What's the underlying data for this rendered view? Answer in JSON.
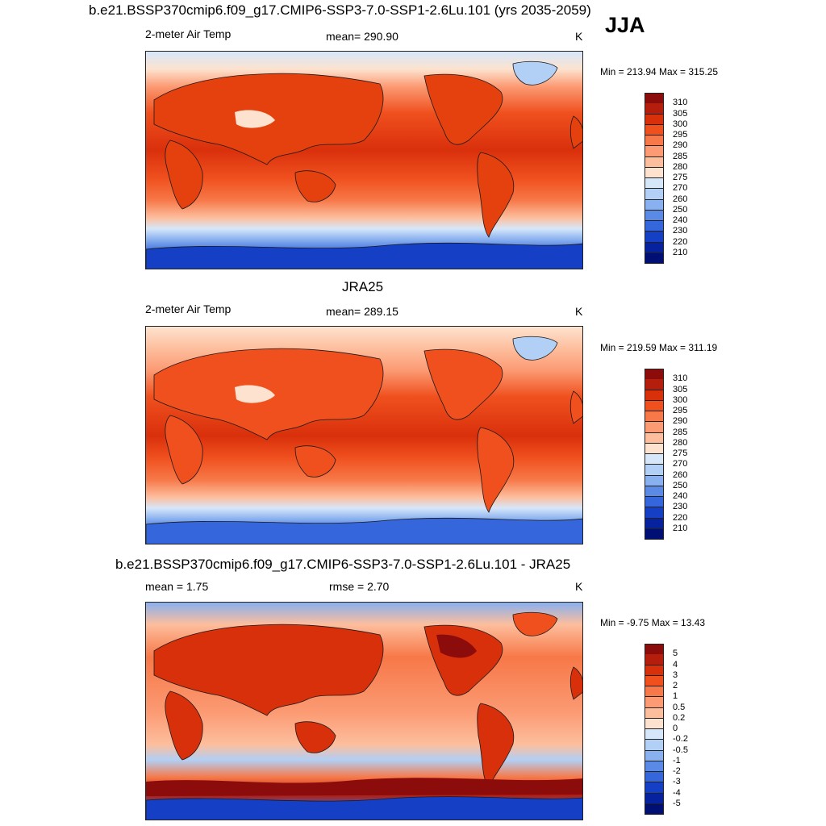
{
  "header": {
    "main_title": "b.e21.BSSP370cmip6.f09_g17.CMIP6-SSP3-7.0-SSP1-2.6Lu.101 (yrs 2035-2059)",
    "season": "JJA"
  },
  "panels": [
    {
      "id": "model",
      "title": "",
      "left_label": "2-meter Air Temp",
      "center_label": "mean= 290.90",
      "right_label": "K",
      "minmax": "Min = 213.94 Max = 315.25",
      "colorbar_labels": [
        "310",
        "305",
        "300",
        "295",
        "290",
        "285",
        "280",
        "275",
        "270",
        "260",
        "250",
        "240",
        "230",
        "220",
        "210"
      ],
      "colors": [
        "#8c0b0b",
        "#b51d0c",
        "#d9300c",
        "#f0501e",
        "#f77848",
        "#fb9a73",
        "#fdbe9d",
        "#fde3cf",
        "#d6e7fa",
        "#b2cff5",
        "#89b0ef",
        "#5b8ae6",
        "#3566dc",
        "#1540c5",
        "#07229e",
        "#000f73"
      ]
    },
    {
      "id": "obs",
      "title": "JRA25",
      "left_label": "2-meter Air Temp",
      "center_label": "mean= 289.15",
      "right_label": "K",
      "minmax": "Min = 219.59 Max = 311.19",
      "colorbar_labels": [
        "310",
        "305",
        "300",
        "295",
        "290",
        "285",
        "280",
        "275",
        "270",
        "260",
        "250",
        "240",
        "230",
        "220",
        "210"
      ],
      "colors": [
        "#8c0b0b",
        "#b51d0c",
        "#d9300c",
        "#f0501e",
        "#f77848",
        "#fb9a73",
        "#fdbe9d",
        "#fde3cf",
        "#d6e7fa",
        "#b2cff5",
        "#89b0ef",
        "#5b8ae6",
        "#3566dc",
        "#1540c5",
        "#07229e",
        "#000f73"
      ]
    },
    {
      "id": "diff",
      "title": "b.e21.BSSP370cmip6.f09_g17.CMIP6-SSP3-7.0-SSP1-2.6Lu.101 - JRA25",
      "left_label": "mean =   1.75",
      "center_label": "rmse =   2.70",
      "right_label": "K",
      "minmax": "Min =  -9.75 Max =  13.43",
      "colorbar_labels": [
        "5",
        "4",
        "3",
        "2",
        "1",
        "0.5",
        "0.2",
        "0",
        "-0.2",
        "-0.5",
        "-1",
        "-2",
        "-3",
        "-4",
        "-5"
      ],
      "colors": [
        "#8c0b0b",
        "#b51d0c",
        "#d9300c",
        "#f0501e",
        "#f77848",
        "#fb9a73",
        "#fdbe9d",
        "#fde3cf",
        "#d6e7fa",
        "#b2cff5",
        "#89b0ef",
        "#5b8ae6",
        "#3566dc",
        "#1540c5",
        "#07229e",
        "#000f73"
      ]
    }
  ]
}
